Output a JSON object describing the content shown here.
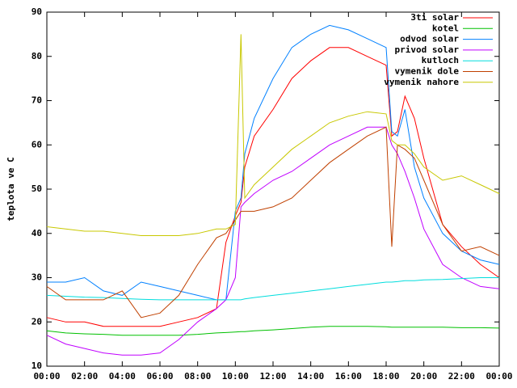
{
  "chart_data": {
    "type": "line",
    "ylabel": "teplota ve C",
    "x": [
      0,
      1,
      2,
      3,
      4,
      5,
      6,
      7,
      8,
      9,
      9.5,
      10,
      10.3,
      10.5,
      11,
      12,
      13,
      14,
      15,
      16,
      17,
      18,
      18.3,
      18.6,
      19,
      19.5,
      20,
      21,
      22,
      23,
      24
    ],
    "xlim": [
      0,
      24
    ],
    "xticks": [
      {
        "value": 0,
        "label": "00:00"
      },
      {
        "value": 2,
        "label": "02:00"
      },
      {
        "value": 4,
        "label": "04:00"
      },
      {
        "value": 6,
        "label": "06:00"
      },
      {
        "value": 8,
        "label": "08:00"
      },
      {
        "value": 10,
        "label": "10:00"
      },
      {
        "value": 12,
        "label": "12:00"
      },
      {
        "value": 14,
        "label": "14:00"
      },
      {
        "value": 16,
        "label": "16:00"
      },
      {
        "value": 18,
        "label": "18:00"
      },
      {
        "value": 20,
        "label": "20:00"
      },
      {
        "value": 22,
        "label": "22:00"
      },
      {
        "value": 24,
        "label": "00:00"
      }
    ],
    "ylim": [
      10,
      90
    ],
    "yticks": [
      10,
      20,
      30,
      40,
      50,
      60,
      70,
      80,
      90
    ],
    "legend": "top-right",
    "series": [
      {
        "name": "3ti solar",
        "color": "#ff0000",
        "values": [
          21,
          20,
          20,
          19,
          19,
          19,
          19,
          20,
          21,
          23,
          38,
          44,
          47,
          55,
          62,
          68,
          75,
          79,
          82,
          82,
          80,
          78,
          62,
          63,
          71,
          66,
          57,
          42,
          37,
          33,
          30
        ]
      },
      {
        "name": "kotel",
        "color": "#00c000",
        "values": [
          18,
          17.5,
          17.3,
          17.2,
          17,
          17,
          17,
          17,
          17.2,
          17.5,
          17.6,
          17.7,
          17.8,
          17.8,
          18,
          18.2,
          18.5,
          18.8,
          19,
          19,
          19,
          18.9,
          18.8,
          18.8,
          18.8,
          18.8,
          18.8,
          18.8,
          18.7,
          18.7,
          18.6
        ]
      },
      {
        "name": "odvod solar",
        "color": "#0080ff",
        "values": [
          29,
          29,
          30,
          27,
          26,
          29,
          28,
          27,
          26,
          25,
          25,
          45,
          48,
          58,
          66,
          75,
          82,
          85,
          87,
          86,
          84,
          82,
          63,
          62,
          68,
          55,
          48,
          40,
          36,
          34,
          33
        ]
      },
      {
        "name": "privod solar",
        "color": "#c000ff",
        "values": [
          17,
          15,
          14,
          13,
          12.5,
          12.5,
          13,
          16,
          20,
          23,
          25,
          30,
          46,
          47,
          49,
          52,
          54,
          57,
          60,
          62,
          64,
          64,
          60,
          58,
          54,
          48,
          41,
          33,
          30,
          28,
          27.5
        ]
      },
      {
        "name": "kutloch",
        "color": "#00dddd",
        "values": [
          26,
          25.8,
          25.6,
          25.5,
          25.3,
          25.1,
          25,
          25,
          25,
          25,
          25,
          25,
          25,
          25.2,
          25.5,
          26,
          26.5,
          27,
          27.5,
          28,
          28.5,
          29,
          29,
          29.1,
          29.3,
          29.3,
          29.5,
          29.6,
          29.8,
          30,
          30
        ]
      },
      {
        "name": "vymenik dole",
        "color": "#c04000",
        "values": [
          28,
          25,
          25,
          25,
          27,
          21,
          22,
          26,
          33,
          39,
          40,
          43,
          45,
          45,
          45,
          46,
          48,
          52,
          56,
          59,
          62,
          64,
          37,
          60,
          59,
          57,
          52,
          42,
          36,
          37,
          35
        ]
      },
      {
        "name": "vymenik nahore",
        "color": "#c8c800",
        "values": [
          41.5,
          41,
          40.5,
          40.5,
          40,
          39.5,
          39.5,
          39.5,
          40,
          41,
          41,
          42,
          85,
          48,
          51,
          55,
          59,
          62,
          65,
          66.5,
          67.5,
          67,
          61,
          60,
          60,
          58,
          55,
          52,
          53,
          51,
          49
        ]
      }
    ]
  }
}
